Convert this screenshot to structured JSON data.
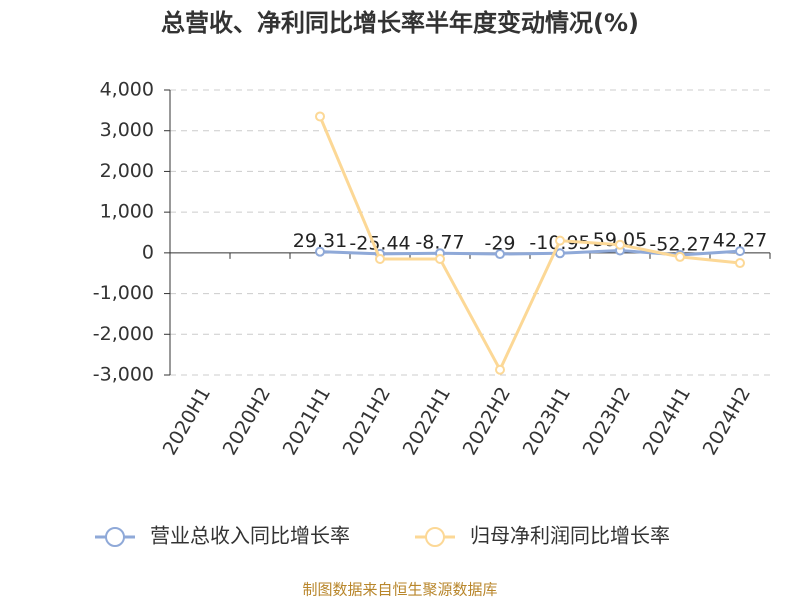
{
  "chart_data": {
    "type": "line",
    "title": "总营收、净利同比增长率半年度变动情况(%)",
    "categories": [
      "2020H1",
      "2020H2",
      "2021H1",
      "2021H2",
      "2022H1",
      "2022H2",
      "2023H1",
      "2023H2",
      "2024H1",
      "2024H2"
    ],
    "series": [
      {
        "name": "营业总收入同比增长率",
        "color": "#8fa9d8",
        "values": [
          null,
          null,
          29.31,
          -25.44,
          -8.77,
          -29,
          -10.95,
          59.05,
          -52.27,
          42.27
        ],
        "show_labels": true
      },
      {
        "name": "归母净利润同比增长率",
        "color": "#fcd896",
        "values": [
          null,
          null,
          3350,
          -150,
          -150,
          -2870,
          300,
          200,
          -100,
          -250
        ],
        "show_labels": false
      }
    ],
    "ylim": [
      -3000,
      4000
    ],
    "yticks": [
      {
        "value": -3000,
        "label": "-3,000"
      },
      {
        "value": -2000,
        "label": "-2,000"
      },
      {
        "value": -1000,
        "label": "-1,000"
      },
      0,
      {
        "value": 1000,
        "label": "1,000"
      },
      {
        "value": 2000,
        "label": "2,000"
      },
      {
        "value": 3000,
        "label": "3,000"
      },
      {
        "value": 4000,
        "label": "4,000"
      }
    ],
    "grid": true,
    "source": "制图数据来自恒生聚源数据库"
  }
}
